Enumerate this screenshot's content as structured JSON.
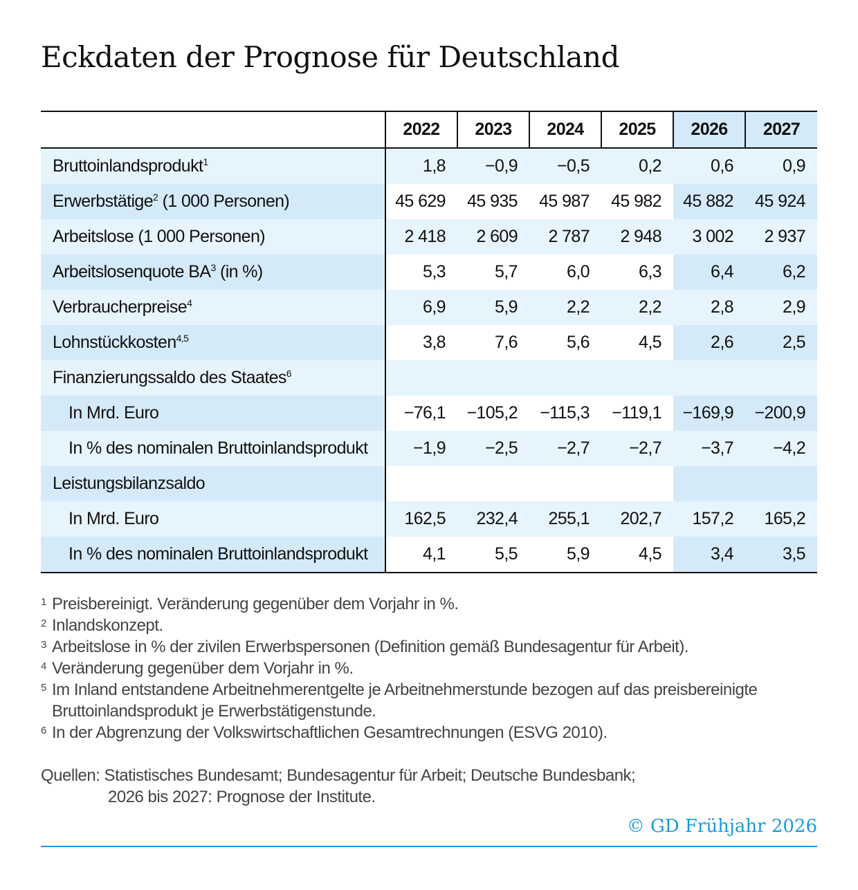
{
  "title": "Eckdaten der Prognose für Deutschland",
  "chart_data": {
    "type": "table",
    "columns": [
      "2022",
      "2023",
      "2024",
      "2025",
      "2026",
      "2027"
    ],
    "forecast_columns": [
      "2026",
      "2027"
    ],
    "rows": [
      {
        "label": "Bruttoinlandsprodukt",
        "sup": "1",
        "values": [
          "1,8",
          "−0,9",
          "−0,5",
          "0,2",
          "0,6",
          "0,9"
        ]
      },
      {
        "label": "Erwerbstätige",
        "sup": "2",
        "suffix": " (1 000 Personen)",
        "values": [
          "45 629",
          "45 935",
          "45 987",
          "45 982",
          "45 882",
          "45 924"
        ]
      },
      {
        "label": "Arbeitslose (1 000 Personen)",
        "values": [
          "2 418",
          "2 609",
          "2 787",
          "2 948",
          "3 002",
          "2 937"
        ]
      },
      {
        "label": "Arbeitslosenquote BA",
        "sup": "3",
        "suffix": " (in %)",
        "values": [
          "5,3",
          "5,7",
          "6,0",
          "6,3",
          "6,4",
          "6,2"
        ]
      },
      {
        "label": "Verbraucherpreise",
        "sup": "4",
        "values": [
          "6,9",
          "5,9",
          "2,2",
          "2,2",
          "2,8",
          "2,9"
        ]
      },
      {
        "label": "Lohnstückkosten",
        "sup": "4,5",
        "values": [
          "3,8",
          "7,6",
          "5,6",
          "4,5",
          "2,6",
          "2,5"
        ]
      },
      {
        "label": "Finanzierungssaldo des Staates",
        "sup": "6",
        "values": [
          "",
          "",
          "",
          "",
          "",
          ""
        ]
      },
      {
        "label": "In Mrd. Euro",
        "sub": true,
        "values": [
          "−76,1",
          "−105,2",
          "−115,3",
          "−119,1",
          "−169,9",
          "−200,9"
        ]
      },
      {
        "label": "In % des nominalen Bruttoinlandsprodukt",
        "sub": true,
        "values": [
          "−1,9",
          "−2,5",
          "−2,7",
          "−2,7",
          "−3,7",
          "−4,2"
        ]
      },
      {
        "label": "Leistungsbilanzsaldo",
        "values": [
          "",
          "",
          "",
          "",
          "",
          ""
        ]
      },
      {
        "label": "In Mrd. Euro",
        "sub": true,
        "values": [
          "162,5",
          "232,4",
          "255,1",
          "202,7",
          "157,2",
          "165,2"
        ]
      },
      {
        "label": "In % des nominalen Bruttoinlandsprodukt",
        "sub": true,
        "values": [
          "4,1",
          "5,5",
          "5,9",
          "4,5",
          "3,4",
          "3,5"
        ]
      }
    ]
  },
  "footnotes": [
    {
      "mark": "1",
      "text": "Preisbereinigt. Veränderung gegenüber dem Vorjahr in %."
    },
    {
      "mark": "2",
      "text": "Inlandskonzept."
    },
    {
      "mark": "3",
      "text": "Arbeitslose in % der zivilen Erwerbspersonen (Definition gemäß Bundesagentur für Arbeit)."
    },
    {
      "mark": "4",
      "text": "Veränderung gegenüber dem Vorjahr in %."
    },
    {
      "mark": "5",
      "text": "Im Inland entstandene Arbeitnehmerentgelte je Arbeitnehmerstunde bezogen auf das preisbereinigte Bruttoinlandsprodukt je Erwerbstätigenstunde."
    },
    {
      "mark": "6",
      "text": "In der Abgrenzung der Volkswirtschaftlichen Gesamtrechnungen (ESVG 2010)."
    }
  ],
  "sources": {
    "line1": "Quellen: Statistisches Bundesamt; Bundesagentur für Arbeit; Deutsche Bundesbank;",
    "line2": "2026 bis 2027: Prognose der Institute."
  },
  "copyright": "© GD Frühjahr 2026",
  "colors": {
    "accent": "#1a9ad6",
    "row_light": "#e6f4fd",
    "row_forecast": "#d4eaf9"
  }
}
